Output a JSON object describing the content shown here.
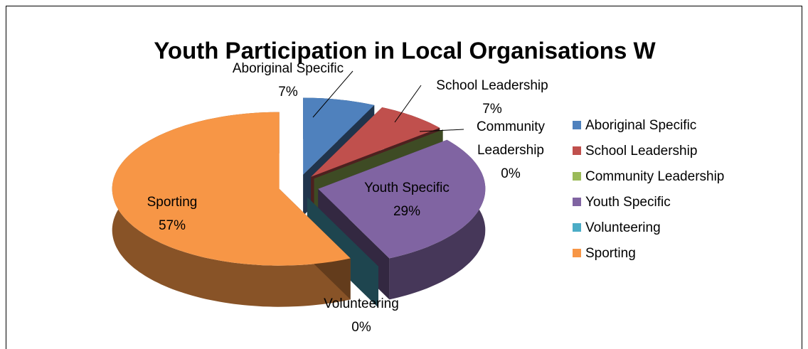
{
  "chart_data": {
    "type": "pie",
    "title": "Youth Participation in Local Organisations W",
    "categories": [
      "Aboriginal Specific",
      "School Leadership",
      "Community Leadership",
      "Youth Specific",
      "Volunteering",
      "Sporting"
    ],
    "values": [
      7,
      7,
      0,
      29,
      0,
      57
    ],
    "value_labels": [
      "7%",
      "7%",
      "0%",
      "29%",
      "0%",
      "57%"
    ],
    "colors": [
      "#4f81bd",
      "#c0504d",
      "#9bbb59",
      "#8064a2",
      "#4bacc6",
      "#f79646"
    ],
    "legend": "right"
  }
}
